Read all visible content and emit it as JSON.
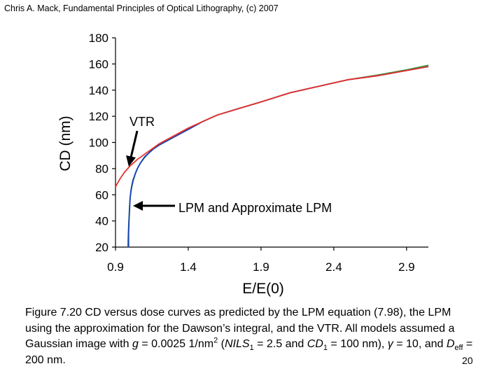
{
  "header": {
    "text": "Chris A. Mack, Fundamental Principles of Optical Lithography, (c) 2007"
  },
  "chart_data": {
    "type": "line",
    "title": "",
    "xlabel": "E/E(0)",
    "ylabel": "CD (nm)",
    "xlim": [
      0.9,
      3.05
    ],
    "ylim": [
      20,
      180
    ],
    "xticks": [
      0.9,
      1.4,
      1.9,
      2.4,
      2.9
    ],
    "yticks": [
      20,
      40,
      60,
      80,
      100,
      120,
      140,
      160,
      180
    ],
    "xtick_labels": [
      "0.9",
      "1.4",
      "1.9",
      "2.4",
      "2.9"
    ],
    "ytick_labels": [
      "20",
      "40",
      "60",
      "80",
      "100",
      "120",
      "140",
      "160",
      "180"
    ],
    "series": [
      {
        "name": "VTR",
        "color": "#e8302c",
        "x": [
          0.9,
          0.93,
          0.96,
          1.0,
          1.05,
          1.1,
          1.15,
          1.2,
          1.25,
          1.3,
          1.4,
          1.5,
          1.6,
          1.75,
          1.9,
          2.1,
          2.3,
          2.5,
          2.7,
          2.9,
          3.05
        ],
        "y": [
          66,
          72,
          77,
          82,
          87,
          91,
          95,
          99,
          102,
          105,
          111,
          116,
          121,
          126,
          131,
          138,
          143,
          148,
          151,
          155,
          158
        ]
      },
      {
        "name": "LPM",
        "color": "#1a3fb8",
        "x": [
          0.99,
          0.99,
          0.993,
          0.997,
          1.0,
          1.005,
          1.01,
          1.02,
          1.035,
          1.05,
          1.07,
          1.1,
          1.13,
          1.16,
          1.2,
          1.25,
          1.3,
          1.4,
          1.5,
          1.6,
          1.75,
          1.9,
          2.1,
          2.3,
          2.5,
          2.7,
          2.9,
          3.05
        ],
        "y": [
          20,
          30,
          40,
          50,
          57,
          62,
          66,
          71,
          76,
          80,
          84,
          89,
          92,
          95,
          98,
          101,
          104,
          110,
          116,
          121,
          126,
          131,
          138,
          143,
          148,
          151,
          155,
          158
        ]
      },
      {
        "name": "Approximate LPM",
        "color": "#2e9a3a",
        "x": [
          0.985,
          0.988,
          0.992,
          0.996,
          1.0,
          1.006,
          1.012,
          1.022,
          1.036,
          1.05,
          1.07,
          1.1,
          1.13,
          1.16,
          1.2,
          1.25,
          1.3,
          1.4,
          1.5,
          1.6,
          1.75,
          1.9,
          2.1,
          2.3,
          2.5,
          2.7,
          2.9,
          3.05
        ],
        "y": [
          20,
          30,
          40,
          50,
          57,
          62,
          66,
          71,
          76,
          80,
          84,
          88.5,
          92,
          95,
          98,
          101,
          104,
          110,
          116,
          121,
          126,
          131,
          138,
          143,
          148,
          151.5,
          155.5,
          159
        ]
      }
    ],
    "annotations": [
      {
        "text": "VTR",
        "points_to": "VTR"
      },
      {
        "text": "LPM and Approximate LPM",
        "points_to": "LPM"
      }
    ]
  },
  "caption": {
    "p1": "Figure 7.20  CD versus dose curves as predicted by the LPM equation (7.98), the LPM using the approximation for the Dawson’s integral, and the VTR.  All models assumed a Gaussian image with ",
    "g": "g",
    "p2": " = 0.0025 1/nm",
    "sup2": "2",
    "p3": " (",
    "nils": "NILS",
    "sub1a": "1",
    "p4": " = 2.5 and ",
    "cd": "CD",
    "sub1b": "1",
    "p5": " = 100 nm), ",
    "gamma": "γ",
    "p6": " = 10, and ",
    "d": "D",
    "eff": "eff",
    "p7": " = 200 nm."
  },
  "page_number": "20"
}
